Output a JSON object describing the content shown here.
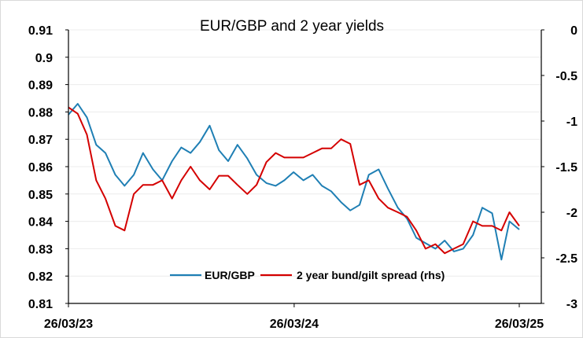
{
  "chart_data": {
    "type": "line",
    "title": "EUR/GBP and 2 year yields",
    "xlabel": "",
    "ylabel": "",
    "y2label": "",
    "x_ticks": [
      "26/03/23",
      "26/03/24",
      "26/03/25"
    ],
    "y_ticks": [
      "0.81",
      "0.82",
      "0.83",
      "0.84",
      "0.85",
      "0.86",
      "0.87",
      "0.88",
      "0.89",
      "0.9",
      "0.91"
    ],
    "y2_ticks": [
      "0",
      "-0.5",
      "-1",
      "-1.5",
      "-2",
      "-2.5",
      "-3"
    ],
    "ylim": [
      0.81,
      0.91
    ],
    "y2lim": [
      -3,
      0
    ],
    "grid": true,
    "legend_position": "bottom-center",
    "colors": {
      "eurgbp": "#1f7fb4",
      "spread": "#d40000"
    },
    "series": [
      {
        "name": "EUR/GBP",
        "axis": "left",
        "x": [
          "2023-03-26",
          "2023-04-10",
          "2023-04-25",
          "2023-05-10",
          "2023-05-25",
          "2023-06-10",
          "2023-06-25",
          "2023-07-10",
          "2023-07-25",
          "2023-08-10",
          "2023-08-25",
          "2023-09-10",
          "2023-09-25",
          "2023-10-10",
          "2023-10-25",
          "2023-11-10",
          "2023-11-25",
          "2023-12-10",
          "2023-12-25",
          "2024-01-10",
          "2024-01-25",
          "2024-02-10",
          "2024-02-25",
          "2024-03-10",
          "2024-03-25",
          "2024-04-10",
          "2024-04-25",
          "2024-05-10",
          "2024-05-25",
          "2024-06-10",
          "2024-06-25",
          "2024-07-10",
          "2024-07-25",
          "2024-08-10",
          "2024-08-25",
          "2024-09-10",
          "2024-09-25",
          "2024-10-10",
          "2024-10-25",
          "2024-11-10",
          "2024-11-25",
          "2024-12-10",
          "2024-12-25",
          "2025-01-10",
          "2025-01-25",
          "2025-02-10",
          "2025-02-25",
          "2025-03-10",
          "2025-03-26"
        ],
        "values": [
          0.879,
          0.883,
          0.878,
          0.868,
          0.865,
          0.857,
          0.853,
          0.857,
          0.865,
          0.859,
          0.855,
          0.862,
          0.867,
          0.865,
          0.869,
          0.875,
          0.866,
          0.862,
          0.868,
          0.863,
          0.857,
          0.854,
          0.853,
          0.855,
          0.858,
          0.855,
          0.857,
          0.853,
          0.851,
          0.847,
          0.844,
          0.846,
          0.857,
          0.859,
          0.852,
          0.845,
          0.841,
          0.834,
          0.832,
          0.83,
          0.833,
          0.829,
          0.83,
          0.835,
          0.845,
          0.843,
          0.826,
          0.84,
          0.837
        ]
      },
      {
        "name": "2 year bund/gilt spread (rhs)",
        "axis": "right",
        "x": [
          "2023-03-26",
          "2023-04-10",
          "2023-04-25",
          "2023-05-10",
          "2023-05-25",
          "2023-06-10",
          "2023-06-25",
          "2023-07-10",
          "2023-07-25",
          "2023-08-10",
          "2023-08-25",
          "2023-09-10",
          "2023-09-25",
          "2023-10-10",
          "2023-10-25",
          "2023-11-10",
          "2023-11-25",
          "2023-12-10",
          "2023-12-25",
          "2024-01-10",
          "2024-01-25",
          "2024-02-10",
          "2024-02-25",
          "2024-03-10",
          "2024-03-25",
          "2024-04-10",
          "2024-04-25",
          "2024-05-10",
          "2024-05-25",
          "2024-06-10",
          "2024-06-25",
          "2024-07-10",
          "2024-07-25",
          "2024-08-10",
          "2024-08-25",
          "2024-09-10",
          "2024-09-25",
          "2024-10-10",
          "2024-10-25",
          "2024-11-10",
          "2024-11-25",
          "2024-12-10",
          "2024-12-25",
          "2025-01-10",
          "2025-01-25",
          "2025-02-10",
          "2025-02-25",
          "2025-03-10",
          "2025-03-26"
        ],
        "values": [
          -0.85,
          -0.92,
          -1.15,
          -1.65,
          -1.85,
          -2.15,
          -2.2,
          -1.8,
          -1.7,
          -1.7,
          -1.65,
          -1.85,
          -1.65,
          -1.5,
          -1.65,
          -1.75,
          -1.6,
          -1.6,
          -1.7,
          -1.8,
          -1.7,
          -1.45,
          -1.35,
          -1.4,
          -1.4,
          -1.4,
          -1.35,
          -1.3,
          -1.3,
          -1.2,
          -1.25,
          -1.7,
          -1.65,
          -1.85,
          -1.95,
          -2.0,
          -2.05,
          -2.2,
          -2.4,
          -2.35,
          -2.45,
          -2.4,
          -2.35,
          -2.1,
          -2.15,
          -2.15,
          -2.2,
          -2.0,
          -2.15
        ]
      }
    ]
  }
}
